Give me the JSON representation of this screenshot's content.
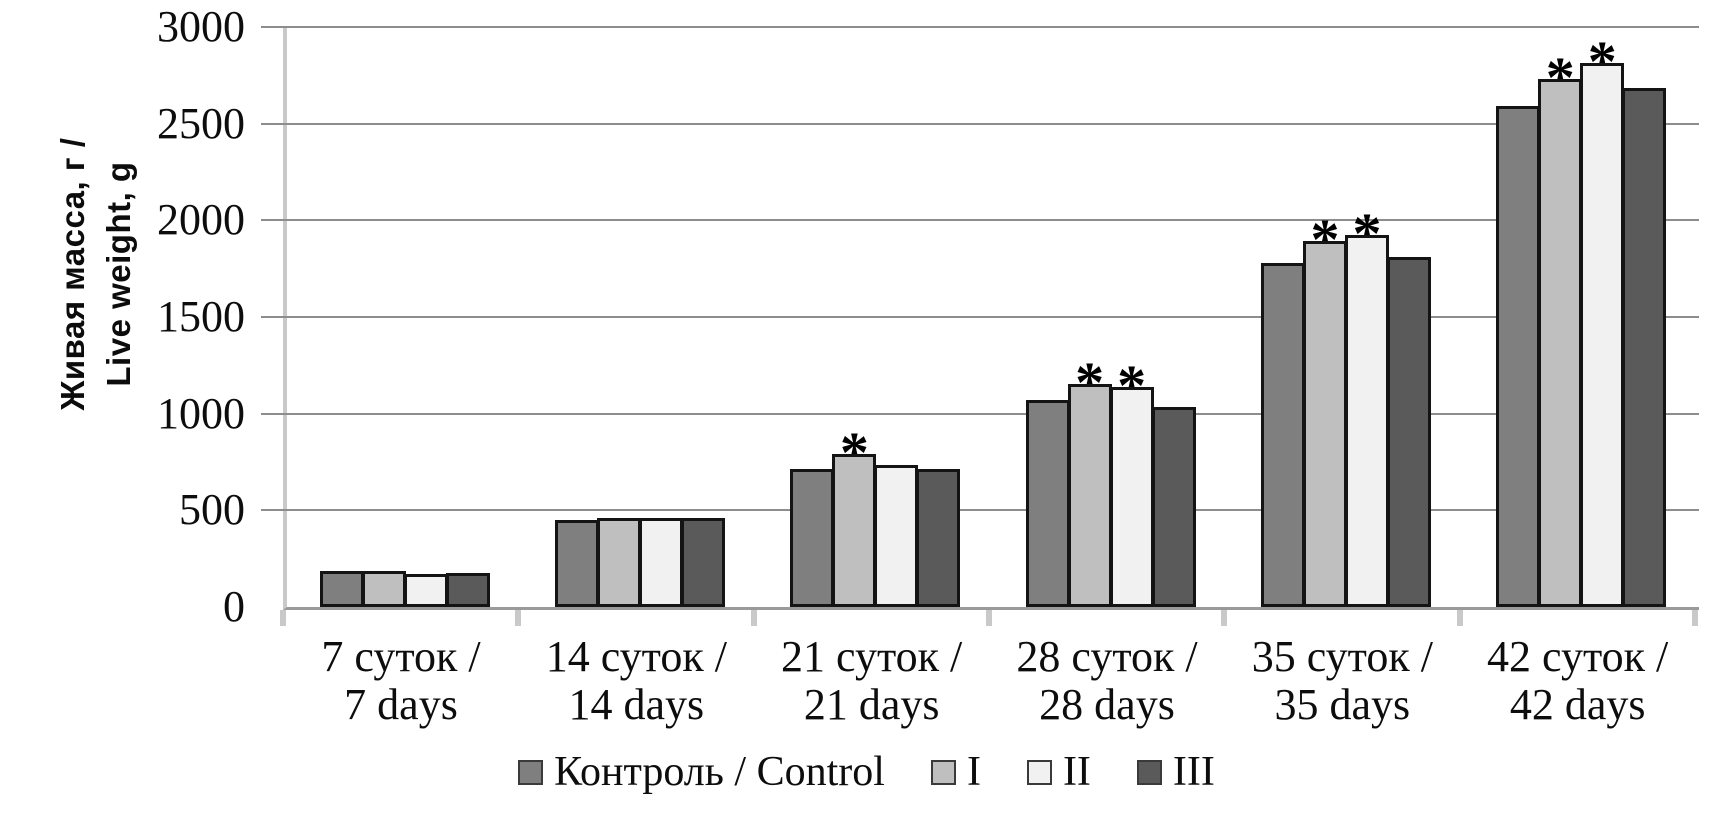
{
  "chart_data": {
    "type": "bar",
    "y_axis": {
      "title_ru": "Живая масса, г /",
      "title_en": "Live weight, g",
      "min": 0,
      "max": 3000,
      "tick_step": 500,
      "ticks": [
        0,
        500,
        1000,
        1500,
        2000,
        2500,
        3000
      ]
    },
    "categories": [
      {
        "ru": "7 суток /",
        "en": "7 days"
      },
      {
        "ru": "14 суток /",
        "en": "14 days"
      },
      {
        "ru": "21 суток /",
        "en": "21 days"
      },
      {
        "ru": "28 суток /",
        "en": "28 days"
      },
      {
        "ru": "35 суток /",
        "en": "35 days"
      },
      {
        "ru": "42 суток /",
        "en": "42 days"
      }
    ],
    "series": [
      {
        "name": "Контроль / Control",
        "color": "#7f7f7f",
        "values": [
          185,
          450,
          715,
          1070,
          1780,
          2590
        ]
      },
      {
        "name": "I",
        "color": "#bfbfbf",
        "values": [
          185,
          460,
          790,
          1155,
          1895,
          2730
        ]
      },
      {
        "name": "II",
        "color": "#f1f1f1",
        "values": [
          170,
          460,
          735,
          1140,
          1925,
          2815
        ]
      },
      {
        "name": "III",
        "color": "#5a5a5a",
        "values": [
          175,
          460,
          715,
          1035,
          1810,
          2685
        ]
      }
    ],
    "significance_marker": "*",
    "significant": [
      [],
      [],
      [
        "I"
      ],
      [
        "I",
        "II"
      ],
      [
        "I",
        "II"
      ],
      [
        "I",
        "II"
      ]
    ],
    "legend_position": "bottom",
    "grid": "horizontal",
    "colors": {
      "background": "#ffffff",
      "gridline": "#8d8d8d",
      "y_axis_line": "#c9c9c9",
      "x_axis_line": "#9a9a9a",
      "bar_border": "#141414",
      "x_tick": "#c9c9c9",
      "text": "#0d0d0d"
    }
  }
}
